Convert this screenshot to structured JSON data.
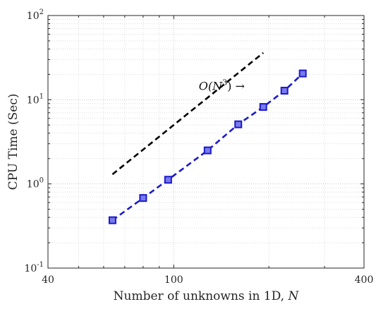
{
  "chart_data": {
    "type": "scatter",
    "x_scale": "log",
    "y_scale": "log",
    "xlim": [
      40,
      400
    ],
    "ylim": [
      0.1,
      100
    ],
    "grid": true,
    "xlabel_text": "Number of unknowns in 1D, ",
    "xlabel_var": "N",
    "ylabel": "CPU Time (Sec)",
    "x_ticks": [
      {
        "value": 40,
        "label": "40"
      },
      {
        "value": 100,
        "label": "100"
      },
      {
        "value": 400,
        "label": "400"
      }
    ],
    "y_ticks": [
      {
        "value": 0.1,
        "base": "10",
        "exp": "-1"
      },
      {
        "value": 1,
        "base": "10",
        "exp": "0"
      },
      {
        "value": 10,
        "base": "10",
        "exp": "1"
      },
      {
        "value": 100,
        "base": "10",
        "exp": "2"
      }
    ],
    "series": [
      {
        "style": "dashed-line-square-markers",
        "color": "#1a1acc",
        "x": [
          64,
          80,
          96,
          128,
          160,
          192,
          224,
          256
        ],
        "y": [
          0.37,
          0.68,
          1.12,
          2.5,
          5.1,
          8.2,
          12.8,
          20.5
        ]
      },
      {
        "style": "dashed-line",
        "color": "#000000",
        "x": [
          64,
          192
        ],
        "y": [
          1.3,
          36
        ]
      }
    ],
    "annotation": {
      "prefix": "O(N",
      "sup": "3",
      "suffix": ") →",
      "x": 120,
      "y": 13
    }
  }
}
